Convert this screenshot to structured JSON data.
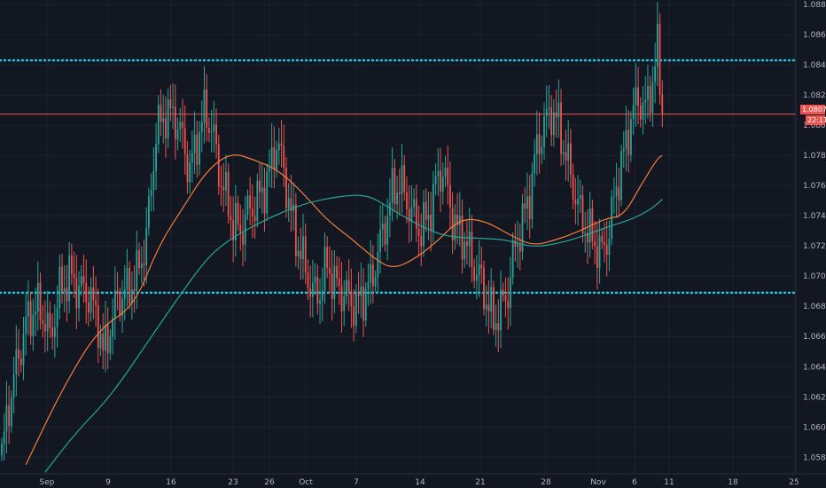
{
  "chart_data": {
    "type": "candlestick",
    "symbol_note": "",
    "y_axis": {
      "ticks": [
        "1.08800",
        "1.08600",
        "1.08400",
        "1.08200",
        "1.08000",
        "1.07800",
        "1.07600",
        "1.07400",
        "1.07200",
        "1.07000",
        "1.06800",
        "1.06600",
        "1.06400",
        "1.06200",
        "1.06000",
        "1.05800"
      ],
      "tick_values": [
        1.088,
        1.086,
        1.084,
        1.082,
        1.08,
        1.078,
        1.076,
        1.074,
        1.072,
        1.07,
        1.068,
        1.066,
        1.064,
        1.062,
        1.06,
        1.058
      ],
      "range": [
        1.0569,
        1.0883
      ]
    },
    "x_axis": {
      "ticks": [
        "Sep",
        "9",
        "16",
        "23",
        "26",
        "Oct",
        "7",
        "14",
        "21",
        "28",
        "Nov",
        "6",
        "11",
        "18",
        "25"
      ]
    },
    "last_price_label": "1.08074",
    "countdown_label": "22:11",
    "horizontal_levels": [
      {
        "name": "resistance",
        "value": 1.0843,
        "style": "dotted",
        "color": "#26c6da"
      },
      {
        "name": "support",
        "value": 1.0689,
        "style": "dotted",
        "color": "#26c6da"
      },
      {
        "name": "last-price-line",
        "value": 1.08074,
        "style": "solid",
        "color": "#ef5350"
      }
    ],
    "ohlc_anchors": [
      [
        0,
        1.0582
      ],
      [
        3,
        1.0615
      ],
      [
        6,
        1.064
      ],
      [
        10,
        1.0668
      ],
      [
        14,
        1.068
      ],
      [
        18,
        1.0672
      ],
      [
        20,
        1.0658
      ],
      [
        24,
        1.069
      ],
      [
        28,
        1.07
      ],
      [
        32,
        1.0692
      ],
      [
        36,
        1.0688
      ],
      [
        40,
        1.067
      ],
      [
        42,
        1.0648
      ],
      [
        44,
        1.066
      ],
      [
        48,
        1.0685
      ],
      [
        52,
        1.069
      ],
      [
        56,
        1.07
      ],
      [
        60,
        1.0725
      ],
      [
        62,
        1.076
      ],
      [
        64,
        1.0795
      ],
      [
        68,
        1.0808
      ],
      [
        72,
        1.0805
      ],
      [
        75,
        1.079
      ],
      [
        78,
        1.077
      ],
      [
        81,
        1.079
      ],
      [
        84,
        1.0808
      ],
      [
        87,
        1.08
      ],
      [
        90,
        1.077
      ],
      [
        93,
        1.0752
      ],
      [
        96,
        1.0735
      ],
      [
        99,
        1.073
      ],
      [
        102,
        1.0742
      ],
      [
        105,
        1.0748
      ],
      [
        108,
        1.0755
      ],
      [
        111,
        1.0768
      ],
      [
        114,
        1.079
      ],
      [
        117,
        1.077
      ],
      [
        120,
        1.074
      ],
      [
        123,
        1.072
      ],
      [
        126,
        1.0705
      ],
      [
        129,
        1.0688
      ],
      [
        132,
        1.069
      ],
      [
        135,
        1.0708
      ],
      [
        138,
        1.0695
      ],
      [
        141,
        1.069
      ],
      [
        144,
        1.0685
      ],
      [
        147,
        1.068
      ],
      [
        150,
        1.0688
      ],
      [
        153,
        1.0695
      ],
      [
        156,
        1.0715
      ],
      [
        159,
        1.0735
      ],
      [
        162,
        1.0755
      ],
      [
        165,
        1.0762
      ],
      [
        168,
        1.075
      ],
      [
        171,
        1.0738
      ],
      [
        174,
        1.073
      ],
      [
        177,
        1.074
      ],
      [
        180,
        1.076
      ],
      [
        183,
        1.0772
      ],
      [
        186,
        1.0745
      ],
      [
        189,
        1.073
      ],
      [
        192,
        1.0725
      ],
      [
        195,
        1.071
      ],
      [
        198,
        1.07
      ],
      [
        201,
        1.0685
      ],
      [
        204,
        1.067
      ],
      [
        207,
        1.0678
      ],
      [
        210,
        1.069
      ],
      [
        213,
        1.072
      ],
      [
        216,
        1.0735
      ],
      [
        219,
        1.0755
      ],
      [
        222,
        1.0785
      ],
      [
        225,
        1.08
      ],
      [
        228,
        1.081
      ],
      [
        231,
        1.08
      ],
      [
        234,
        1.078
      ],
      [
        237,
        1.076
      ],
      [
        240,
        1.074
      ],
      [
        243,
        1.073
      ],
      [
        246,
        1.0722
      ],
      [
        249,
        1.0715
      ],
      [
        252,
        1.073
      ],
      [
        255,
        1.076
      ],
      [
        258,
        1.078
      ],
      [
        261,
        1.0805
      ],
      [
        264,
        1.0818
      ],
      [
        267,
        1.081
      ],
      [
        270,
        1.083
      ],
      [
        272,
        1.085
      ],
      [
        274,
        1.0807
      ]
    ],
    "series": [
      {
        "name": "",
        "color": "#f57c3b",
        "type": "moving-average",
        "points": [
          [
            10,
            1.0575
          ],
          [
            25,
            1.0625
          ],
          [
            40,
            1.0665
          ],
          [
            55,
            1.068
          ],
          [
            65,
            1.072
          ],
          [
            75,
            1.0745
          ],
          [
            85,
            1.077
          ],
          [
            95,
            1.0782
          ],
          [
            105,
            1.0777
          ],
          [
            115,
            1.077
          ],
          [
            125,
            1.0755
          ],
          [
            135,
            1.0737
          ],
          [
            145,
            1.0725
          ],
          [
            155,
            1.0711
          ],
          [
            162,
            1.0705
          ],
          [
            170,
            1.071
          ],
          [
            180,
            1.0722
          ],
          [
            190,
            1.0738
          ],
          [
            200,
            1.0737
          ],
          [
            210,
            1.0728
          ],
          [
            220,
            1.072
          ],
          [
            230,
            1.0724
          ],
          [
            240,
            1.073
          ],
          [
            250,
            1.0738
          ],
          [
            258,
            1.074
          ],
          [
            265,
            1.076
          ],
          [
            272,
            1.0778
          ],
          [
            274,
            1.078
          ]
        ]
      },
      {
        "name": "",
        "color": "#26a69a",
        "type": "moving-average",
        "points": [
          [
            18,
            1.057
          ],
          [
            30,
            1.0595
          ],
          [
            45,
            1.062
          ],
          [
            60,
            1.0655
          ],
          [
            72,
            1.0683
          ],
          [
            85,
            1.0712
          ],
          [
            95,
            1.0725
          ],
          [
            110,
            1.0738
          ],
          [
            125,
            1.0748
          ],
          [
            140,
            1.0753
          ],
          [
            152,
            1.0754
          ],
          [
            162,
            1.0744
          ],
          [
            175,
            1.0732
          ],
          [
            185,
            1.0726
          ],
          [
            200,
            1.0725
          ],
          [
            210,
            1.0724
          ],
          [
            220,
            1.0719
          ],
          [
            232,
            1.0722
          ],
          [
            242,
            1.0727
          ],
          [
            252,
            1.0733
          ],
          [
            262,
            1.0738
          ],
          [
            270,
            1.0745
          ],
          [
            274,
            1.0751
          ]
        ]
      }
    ]
  }
}
